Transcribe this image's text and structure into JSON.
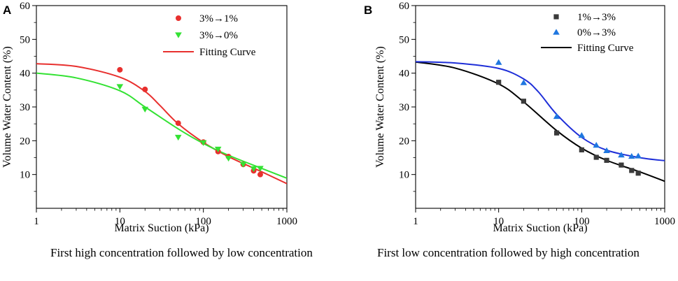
{
  "chart_data": [
    {
      "type": "scatter",
      "panel": "A",
      "xscale": "log",
      "xlim": [
        1,
        1000
      ],
      "ylim": [
        0,
        60
      ],
      "xticks": [
        "1",
        "10",
        "100",
        "1000"
      ],
      "yticks": [
        "10",
        "20",
        "30",
        "40",
        "50",
        "60"
      ],
      "xlabel": "Matrix Suction (kPa)",
      "ylabel": "Volume Water Content (%)",
      "legend_position": "top-right",
      "series": [
        {
          "name": "3%→1%",
          "marker": "circle",
          "color": "#e8302e",
          "x": [
            10,
            20,
            50,
            100,
            150,
            200,
            300,
            400,
            480
          ],
          "y": [
            41,
            35.2,
            25.2,
            19.6,
            16.8,
            15.3,
            13.0,
            11.1,
            10.0
          ]
        },
        {
          "name": "3%→0%",
          "marker": "triangle-down",
          "color": "#33e233",
          "x": [
            10,
            20,
            50,
            100,
            150,
            200,
            300,
            400,
            480
          ],
          "y": [
            36.0,
            29.3,
            21.0,
            19.4,
            17.5,
            14.8,
            13.0,
            11.7,
            11.8
          ]
        },
        {
          "name": "Fitting Curve",
          "line": true,
          "color": "#e8302e",
          "x": [
            1,
            3,
            10,
            20,
            30,
            50,
            100,
            200,
            500,
            1000
          ],
          "y": [
            42.8,
            42.0,
            38.8,
            34.6,
            30.5,
            25.0,
            19.5,
            15.3,
            10.8,
            7.3
          ]
        },
        {
          "name": "Fitting Curve (3%→0%)",
          "line": true,
          "legend": false,
          "color": "#33e233",
          "x": [
            1,
            3,
            10,
            20,
            50,
            100,
            200,
            500,
            1000
          ],
          "y": [
            40.0,
            38.6,
            34.8,
            30.0,
            23.5,
            19.2,
            15.7,
            11.8,
            8.9
          ]
        }
      ]
    },
    {
      "type": "scatter",
      "panel": "B",
      "xscale": "log",
      "xlim": [
        1,
        1000
      ],
      "ylim": [
        0,
        60
      ],
      "xticks": [
        "1",
        "10",
        "100",
        "1000"
      ],
      "yticks": [
        "10",
        "20",
        "30",
        "40",
        "50",
        "60"
      ],
      "xlabel": "Matrix Suction (kPa)",
      "ylabel": "Volume Water Content (%)",
      "legend_position": "top-right",
      "series": [
        {
          "name": "1%→3%",
          "marker": "square",
          "color": "#3a3a3a",
          "x": [
            10,
            20,
            50,
            100,
            150,
            200,
            300,
            400,
            480
          ],
          "y": [
            37.3,
            31.7,
            22.3,
            17.3,
            15.1,
            14.2,
            12.8,
            11.2,
            10.4
          ]
        },
        {
          "name": "0%→3%",
          "marker": "triangle-up",
          "color": "#1f77e0",
          "x": [
            10,
            20,
            50,
            100,
            150,
            200,
            300,
            400,
            480
          ],
          "y": [
            43.2,
            37.2,
            27.2,
            21.6,
            18.7,
            17.1,
            15.8,
            15.4,
            15.5
          ]
        },
        {
          "name": "Fitting Curve",
          "line": true,
          "color": "#000000",
          "x": [
            1,
            3,
            10,
            20,
            50,
            100,
            200,
            500,
            1000
          ],
          "y": [
            43.3,
            41.5,
            36.8,
            31.5,
            23.0,
            17.8,
            14.2,
            10.8,
            8.0
          ]
        },
        {
          "name": "Fitting Curve (0%→3%)",
          "line": true,
          "legend": false,
          "color": "#1f2fd8",
          "x": [
            1,
            3,
            10,
            20,
            30,
            50,
            100,
            200,
            500,
            1000
          ],
          "y": [
            43.4,
            43.0,
            41.4,
            38.3,
            34.5,
            27.8,
            21.0,
            17.2,
            15.0,
            14.1
          ]
        }
      ]
    }
  ],
  "captions": {
    "a": "First high concentration followed by low concentration",
    "b": "First low concentration followed by high concentration"
  }
}
